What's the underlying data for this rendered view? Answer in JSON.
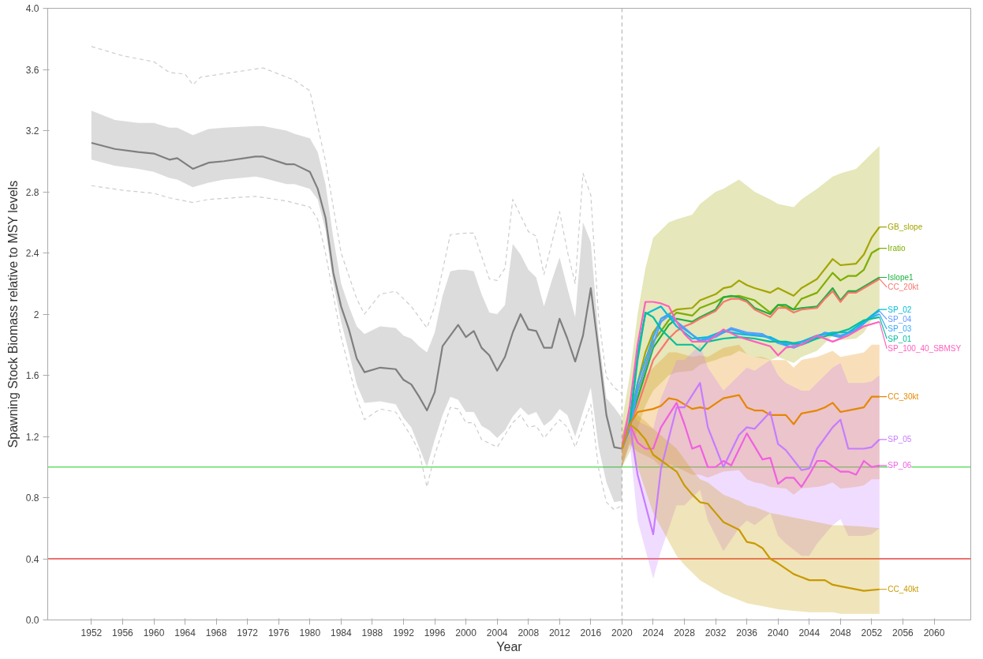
{
  "chart_data": {
    "type": "line",
    "xlabel": "Year",
    "ylabel": "Spawning Stock Biomass relative to MSY levels",
    "xlim": [
      1946.4,
      2064.7
    ],
    "ylim": [
      0,
      4
    ],
    "legend": "right",
    "xticks": [
      1952,
      1956,
      1960,
      1964,
      1968,
      1972,
      1976,
      1980,
      1984,
      1988,
      1992,
      1996,
      2000,
      2004,
      2008,
      2012,
      2016,
      2020,
      2024,
      2028,
      2032,
      2036,
      2040,
      2044,
      2048,
      2052,
      2056,
      2060
    ],
    "yticks": [
      {
        "value": 0,
        "label": "0.0"
      },
      0.4,
      0.8,
      1.2,
      1.6,
      2.0,
      2.4,
      2.8,
      3.2,
      3.6,
      {
        "value": 4,
        "label": "4.0"
      }
    ],
    "ref_lines": [
      {
        "axis": "y",
        "value": 1.0,
        "color": "#66dd66",
        "line_style": "solid"
      },
      {
        "axis": "y",
        "value": 0.4,
        "color": "#e84040",
        "line_style": "solid"
      },
      {
        "axis": "x",
        "value": 2020,
        "color": "#bbbbbb",
        "line_style": "dashed"
      }
    ],
    "series": [
      {
        "color": "#cccccc",
        "line_style": "dashed",
        "x": [
          1952,
          1956,
          1960,
          1962,
          1964,
          1965,
          1966,
          1970,
          1974,
          1978,
          1980,
          1982,
          1984,
          1986,
          1987,
          1989,
          1991,
          1993,
          1995,
          1996,
          1998,
          2000,
          2001,
          2003,
          2004,
          2005,
          2006,
          2008,
          2009,
          2010,
          2012,
          2013,
          2014,
          2015,
          2016,
          2017,
          2018,
          2019,
          2020
        ],
        "values": [
          3.75,
          3.69,
          3.65,
          3.58,
          3.57,
          3.5,
          3.55,
          3.58,
          3.61,
          3.53,
          3.46,
          3.0,
          2.4,
          2.1,
          2.0,
          2.13,
          2.15,
          2.05,
          1.91,
          2.05,
          2.52,
          2.53,
          2.53,
          2.23,
          2.22,
          2.3,
          2.75,
          2.54,
          2.51,
          2.26,
          2.67,
          2.41,
          2.2,
          2.92,
          2.78,
          1.98,
          1.59,
          1.52,
          1.48
        ]
      },
      {
        "color": "#cccccc",
        "line_style": "dashed",
        "x": [
          1952,
          1956,
          1960,
          1962,
          1965,
          1967,
          1973,
          1977,
          1980,
          1981,
          1982,
          1984,
          1986,
          1987,
          1989,
          1991,
          1993,
          1994,
          1995,
          1996,
          1998,
          1999,
          2000,
          2001,
          2002,
          2004,
          2006,
          2007,
          2008,
          2009,
          2010,
          2012,
          2013,
          2014,
          2016,
          2017,
          2018,
          2019,
          2020
        ],
        "values": [
          2.84,
          2.81,
          2.79,
          2.76,
          2.73,
          2.75,
          2.77,
          2.74,
          2.7,
          2.62,
          2.4,
          1.85,
          1.45,
          1.31,
          1.38,
          1.36,
          1.2,
          1.1,
          0.87,
          1.08,
          1.39,
          1.38,
          1.29,
          1.29,
          1.18,
          1.13,
          1.29,
          1.34,
          1.26,
          1.27,
          1.19,
          1.31,
          1.26,
          1.13,
          1.41,
          0.99,
          0.77,
          0.72,
          0.75
        ]
      },
      {
        "color": "#7f7f7f",
        "x": [
          1952,
          1955,
          1958,
          1960,
          1962,
          1963,
          1965,
          1967,
          1969,
          1973,
          1974,
          1977,
          1978,
          1980,
          1981,
          1982,
          1983,
          1984,
          1985,
          1986,
          1987,
          1989,
          1991,
          1992,
          1993,
          1994,
          1995,
          1996,
          1997,
          1998,
          1999,
          2000,
          2001,
          2002,
          2003,
          2004,
          2005,
          2006,
          2007,
          2008,
          2009,
          2010,
          2011,
          2012,
          2013,
          2014,
          2015,
          2016,
          2017,
          2018,
          2019,
          2020
        ],
        "values": [
          3.12,
          3.08,
          3.06,
          3.05,
          3.01,
          3.02,
          2.95,
          2.99,
          3.0,
          3.03,
          3.03,
          2.98,
          2.98,
          2.93,
          2.82,
          2.63,
          2.27,
          2.05,
          1.9,
          1.71,
          1.62,
          1.65,
          1.64,
          1.57,
          1.54,
          1.46,
          1.37,
          1.49,
          1.79,
          1.86,
          1.93,
          1.85,
          1.89,
          1.78,
          1.73,
          1.63,
          1.72,
          1.88,
          2.0,
          1.9,
          1.89,
          1.78,
          1.78,
          1.97,
          1.84,
          1.69,
          1.86,
          2.17,
          1.76,
          1.34,
          1.13,
          1.12
        ],
        "upper": [
          3.33,
          3.27,
          3.25,
          3.25,
          3.22,
          3.22,
          3.17,
          3.21,
          3.22,
          3.23,
          3.23,
          3.2,
          3.18,
          3.15,
          3.06,
          2.85,
          2.5,
          2.2,
          2.05,
          1.92,
          1.87,
          1.92,
          1.91,
          1.86,
          1.84,
          1.79,
          1.75,
          1.88,
          2.12,
          2.28,
          2.29,
          2.29,
          2.28,
          2.13,
          2.01,
          2.0,
          2.06,
          2.46,
          2.39,
          2.29,
          2.24,
          2.05,
          2.22,
          2.37,
          2.17,
          1.98,
          2.6,
          2.47,
          1.86,
          1.45,
          1.39,
          1.32
        ],
        "lower": [
          3.01,
          2.97,
          2.95,
          2.93,
          2.89,
          2.88,
          2.83,
          2.86,
          2.88,
          2.9,
          2.89,
          2.85,
          2.85,
          2.82,
          2.75,
          2.55,
          2.2,
          1.95,
          1.75,
          1.54,
          1.42,
          1.43,
          1.41,
          1.32,
          1.26,
          1.13,
          1.0,
          1.18,
          1.34,
          1.46,
          1.44,
          1.36,
          1.36,
          1.27,
          1.24,
          1.19,
          1.24,
          1.33,
          1.39,
          1.34,
          1.36,
          1.27,
          1.31,
          1.38,
          1.34,
          1.2,
          1.36,
          1.52,
          1.13,
          0.9,
          0.77,
          0.78
        ]
      },
      {
        "name": "GB_slope",
        "color": "#a3a500",
        "x": [
          2020,
          2021,
          2022,
          2023,
          2024,
          2025,
          2026,
          2027,
          2029,
          2030,
          2032,
          2033,
          2034,
          2035,
          2036,
          2037,
          2039,
          2040,
          2042,
          2043,
          2045,
          2047,
          2048,
          2050,
          2051,
          2052,
          2053
        ],
        "values": [
          1.12,
          1.28,
          1.55,
          1.75,
          1.88,
          1.95,
          2.0,
          2.03,
          2.04,
          2.09,
          2.13,
          2.17,
          2.18,
          2.22,
          2.19,
          2.17,
          2.14,
          2.17,
          2.12,
          2.17,
          2.23,
          2.36,
          2.32,
          2.33,
          2.39,
          2.5,
          2.57
        ],
        "upper": [
          1.3,
          1.6,
          2.0,
          2.3,
          2.5,
          2.55,
          2.6,
          2.62,
          2.65,
          2.72,
          2.8,
          2.82,
          2.85,
          2.88,
          2.84,
          2.8,
          2.75,
          2.72,
          2.7,
          2.75,
          2.82,
          2.9,
          2.92,
          2.95,
          3.0,
          3.05,
          3.1
        ],
        "lower": [
          1.0,
          1.1,
          1.25,
          1.4,
          1.5,
          1.55,
          1.6,
          1.62,
          1.63,
          1.67,
          1.7,
          1.72,
          1.73,
          1.76,
          1.74,
          1.72,
          1.7,
          1.72,
          1.68,
          1.72,
          1.76,
          1.86,
          1.83,
          1.84,
          1.88,
          1.96,
          2.02
        ]
      },
      {
        "name": "Iratio",
        "color": "#7cae00",
        "x": [
          2020,
          2021,
          2022,
          2024,
          2026,
          2027,
          2029,
          2030,
          2032,
          2033,
          2035,
          2037,
          2039,
          2040,
          2042,
          2043,
          2045,
          2047,
          2048,
          2049,
          2050,
          2051,
          2052,
          2053
        ],
        "values": [
          1.12,
          1.28,
          1.5,
          1.82,
          1.96,
          2.01,
          1.99,
          2.04,
          2.08,
          2.11,
          2.12,
          2.09,
          2.01,
          2.06,
          2.03,
          2.1,
          2.14,
          2.27,
          2.22,
          2.25,
          2.25,
          2.29,
          2.4,
          2.43
        ]
      },
      {
        "name": "Islope1",
        "color": "#1eb040",
        "x": [
          2020,
          2021,
          2022,
          2024,
          2026,
          2027,
          2028,
          2029,
          2030,
          2032,
          2033,
          2034,
          2035,
          2036,
          2037,
          2039,
          2040,
          2041,
          2042,
          2043,
          2045,
          2046,
          2047,
          2048,
          2049,
          2050,
          2051,
          2053
        ],
        "values": [
          1.12,
          1.28,
          1.45,
          1.78,
          1.93,
          1.97,
          1.96,
          1.95,
          1.98,
          2.03,
          2.11,
          2.12,
          2.11,
          2.09,
          2.04,
          2.0,
          2.06,
          2.06,
          2.03,
          2.04,
          2.05,
          2.11,
          2.17,
          2.09,
          2.15,
          2.15,
          2.18,
          2.24
        ]
      },
      {
        "name": "CC_20kt",
        "color": "#f8766d",
        "x": [
          2020,
          2021,
          2022,
          2024,
          2026,
          2027,
          2028,
          2029,
          2030,
          2032,
          2033,
          2034,
          2035,
          2036,
          2037,
          2039,
          2040,
          2041,
          2042,
          2043,
          2045,
          2046,
          2047,
          2048,
          2049,
          2050,
          2051,
          2053
        ],
        "values": [
          1.12,
          1.28,
          1.4,
          1.7,
          1.84,
          1.89,
          1.92,
          1.94,
          1.97,
          2.02,
          2.08,
          2.1,
          2.1,
          2.08,
          2.03,
          1.98,
          2.04,
          2.04,
          2.01,
          2.03,
          2.04,
          2.1,
          2.15,
          2.08,
          2.14,
          2.14,
          2.17,
          2.23
        ]
      },
      {
        "name": "SP_04",
        "color": "#619cff",
        "x": [
          2020,
          2021,
          2022,
          2024,
          2025,
          2026,
          2028,
          2030,
          2032,
          2034,
          2036,
          2038,
          2040,
          2042,
          2044,
          2046,
          2048,
          2050,
          2052,
          2053
        ],
        "values": [
          1.12,
          1.25,
          1.5,
          1.8,
          1.95,
          1.99,
          1.91,
          1.82,
          1.85,
          1.91,
          1.88,
          1.87,
          1.81,
          1.78,
          1.82,
          1.88,
          1.86,
          1.89,
          1.99,
          2.02
        ]
      },
      {
        "name": "SP_02",
        "color": "#00bcd8",
        "x": [
          2020,
          2021,
          2022,
          2023,
          2025,
          2027,
          2029,
          2031,
          2033,
          2035,
          2037,
          2039,
          2041,
          2043,
          2045,
          2047,
          2049,
          2051,
          2053
        ],
        "values": [
          1.12,
          1.3,
          1.75,
          2.0,
          2.05,
          1.92,
          1.84,
          1.85,
          1.89,
          1.87,
          1.86,
          1.85,
          1.8,
          1.82,
          1.86,
          1.88,
          1.88,
          1.95,
          2.03
        ]
      },
      {
        "name": "SP_03",
        "color": "#35a9f5",
        "x": [
          2020,
          2021,
          2022,
          2024,
          2025,
          2026,
          2028,
          2030,
          2032,
          2034,
          2036,
          2038,
          2040,
          2042,
          2044,
          2046,
          2048,
          2050,
          2052,
          2053
        ],
        "values": [
          1.12,
          1.26,
          1.55,
          1.85,
          1.97,
          2.0,
          1.9,
          1.83,
          1.86,
          1.9,
          1.87,
          1.86,
          1.82,
          1.8,
          1.83,
          1.87,
          1.85,
          1.9,
          1.98,
          2.0
        ]
      },
      {
        "name": "SP_01",
        "color": "#00bf9c",
        "x": [
          2020,
          2021,
          2022,
          2023,
          2024,
          2025,
          2026,
          2027,
          2029,
          2030,
          2031,
          2033,
          2035,
          2037,
          2039,
          2041,
          2043,
          2045,
          2047,
          2049,
          2051,
          2053
        ],
        "values": [
          1.12,
          1.28,
          1.7,
          2.01,
          1.98,
          1.9,
          1.85,
          1.8,
          1.8,
          1.76,
          1.82,
          1.84,
          1.85,
          1.84,
          1.82,
          1.82,
          1.8,
          1.84,
          1.87,
          1.9,
          1.96,
          1.98
        ]
      },
      {
        "name": "SP_100_40_SBMSY",
        "color": "#ff5fc0",
        "x": [
          2020,
          2021,
          2022,
          2023,
          2024,
          2025,
          2026,
          2027,
          2028,
          2029,
          2031,
          2033,
          2035,
          2037,
          2039,
          2040,
          2041,
          2043,
          2045,
          2047,
          2049,
          2051,
          2053
        ],
        "values": [
          1.12,
          1.4,
          1.8,
          2.08,
          2.08,
          2.07,
          2.05,
          1.95,
          1.87,
          1.82,
          1.82,
          1.9,
          1.85,
          1.82,
          1.79,
          1.73,
          1.78,
          1.8,
          1.86,
          1.82,
          1.86,
          1.92,
          1.95
        ]
      },
      {
        "name": "CC_30kt",
        "color": "#e58700",
        "x": [
          2020,
          2021,
          2022,
          2024,
          2025,
          2026,
          2027,
          2029,
          2030,
          2031,
          2033,
          2035,
          2036,
          2037,
          2038,
          2039,
          2041,
          2042,
          2043,
          2045,
          2046,
          2047,
          2048,
          2050,
          2051,
          2052,
          2053
        ],
        "values": [
          1.12,
          1.28,
          1.36,
          1.38,
          1.4,
          1.45,
          1.44,
          1.38,
          1.39,
          1.38,
          1.45,
          1.47,
          1.39,
          1.37,
          1.37,
          1.34,
          1.34,
          1.28,
          1.35,
          1.37,
          1.39,
          1.42,
          1.36,
          1.38,
          1.39,
          1.46,
          1.46
        ],
        "upper": [
          1.2,
          1.4,
          1.55,
          1.65,
          1.7,
          1.75,
          1.75,
          1.72,
          1.73,
          1.72,
          1.78,
          1.8,
          1.74,
          1.72,
          1.72,
          1.7,
          1.7,
          1.65,
          1.7,
          1.72,
          1.74,
          1.76,
          1.72,
          1.74,
          1.75,
          1.8,
          1.8
        ],
        "lower": [
          1.0,
          1.15,
          1.1,
          1.05,
          1.0,
          1.02,
          1.0,
          0.95,
          0.95,
          0.93,
          0.97,
          0.98,
          0.92,
          0.9,
          0.89,
          0.87,
          0.86,
          0.82,
          0.86,
          0.87,
          0.88,
          0.9,
          0.86,
          0.87,
          0.88,
          0.92,
          0.92
        ]
      },
      {
        "name": "SP_05",
        "color": "#c77cff",
        "x": [
          2020,
          2021,
          2022,
          2024,
          2025,
          2027,
          2028,
          2030,
          2031,
          2033,
          2035,
          2036,
          2037,
          2039,
          2040,
          2041,
          2043,
          2044,
          2045,
          2047,
          2048,
          2049,
          2051,
          2052,
          2053
        ],
        "values": [
          1.12,
          1.28,
          0.95,
          0.56,
          0.99,
          1.39,
          1.39,
          1.55,
          1.26,
          1.0,
          1.21,
          1.26,
          1.25,
          1.36,
          1.15,
          1.11,
          0.98,
          0.99,
          1.12,
          1.26,
          1.31,
          1.12,
          1.12,
          1.13,
          1.18
        ],
        "upper": [
          1.2,
          1.4,
          1.3,
          1.25,
          1.45,
          1.7,
          1.7,
          1.8,
          1.65,
          1.5,
          1.6,
          1.65,
          1.63,
          1.7,
          1.6,
          1.55,
          1.5,
          1.5,
          1.55,
          1.65,
          1.68,
          1.55,
          1.55,
          1.56,
          1.6
        ],
        "lower": [
          1.0,
          1.15,
          0.65,
          0.27,
          0.45,
          0.75,
          0.75,
          0.85,
          0.65,
          0.45,
          0.6,
          0.65,
          0.62,
          0.7,
          0.55,
          0.5,
          0.42,
          0.42,
          0.5,
          0.62,
          0.66,
          0.55,
          0.55,
          0.56,
          0.6
        ]
      },
      {
        "name": "SP_06",
        "color": "#f060e0",
        "x": [
          2020,
          2021,
          2022,
          2023,
          2024,
          2025,
          2027,
          2028,
          2029,
          2030,
          2031,
          2032,
          2033,
          2034,
          2036,
          2038,
          2039,
          2040,
          2041,
          2042,
          2043,
          2044,
          2045,
          2046,
          2048,
          2049,
          2050,
          2051,
          2052,
          2053
        ],
        "values": [
          1.12,
          1.28,
          1.16,
          1.12,
          1.12,
          1.26,
          1.42,
          1.28,
          1.12,
          1.14,
          1.0,
          1.0,
          1.04,
          1.01,
          1.22,
          1.05,
          1.06,
          0.89,
          0.93,
          0.93,
          0.87,
          0.95,
          1.04,
          1.04,
          0.97,
          0.97,
          0.95,
          1.04,
          1.0,
          1.01
        ]
      },
      {
        "name": "CC_40kt",
        "color": "#c89a00",
        "x": [
          2020,
          2021,
          2022,
          2023,
          2024,
          2027,
          2028,
          2029,
          2030,
          2031,
          2032,
          2033,
          2035,
          2036,
          2037,
          2038,
          2039,
          2040,
          2042,
          2044,
          2045,
          2046,
          2047,
          2048,
          2051,
          2053
        ],
        "values": [
          1.12,
          1.28,
          1.24,
          1.18,
          1.08,
          0.97,
          0.88,
          0.82,
          0.77,
          0.76,
          0.7,
          0.64,
          0.59,
          0.51,
          0.5,
          0.47,
          0.4,
          0.37,
          0.3,
          0.26,
          0.26,
          0.26,
          0.23,
          0.22,
          0.19,
          0.2
        ],
        "upper": [
          1.2,
          1.36,
          1.34,
          1.3,
          1.25,
          1.12,
          1.05,
          0.98,
          0.92,
          0.9,
          0.86,
          0.82,
          0.78,
          0.75,
          0.74,
          0.72,
          0.7,
          0.69,
          0.67,
          0.65,
          0.64,
          0.63,
          0.62,
          0.62,
          0.61,
          0.6
        ],
        "lower": [
          1.0,
          1.18,
          1.0,
          0.85,
          0.7,
          0.42,
          0.36,
          0.31,
          0.26,
          0.23,
          0.2,
          0.17,
          0.13,
          0.11,
          0.1,
          0.09,
          0.08,
          0.07,
          0.06,
          0.05,
          0.05,
          0.05,
          0.05,
          0.04,
          0.04,
          0.04
        ]
      }
    ]
  }
}
